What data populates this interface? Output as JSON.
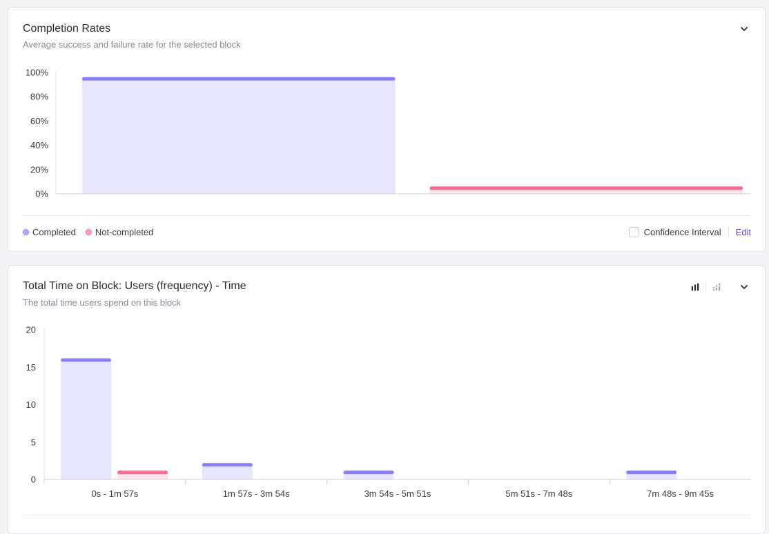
{
  "completion": {
    "title": "Completion Rates",
    "subtitle": "Average success and failure rate for the selected block",
    "legend": {
      "completed": "Completed",
      "not_completed": "Not-completed"
    },
    "confidence_label": "Confidence Interval",
    "edit_label": "Edit"
  },
  "time_on_block": {
    "title": "Total Time on Block: Users (frequency) - Time",
    "subtitle": "The total time users spend on this block"
  },
  "colors": {
    "completed_fill": "#e8e6fd",
    "completed_stroke": "#8b7ff5",
    "not_completed_fill": "#fde3ea",
    "not_completed_stroke": "#ee6f91",
    "accent": "#5b4bdb"
  },
  "icons": {
    "collapse": "chevron-down-icon",
    "bar_view": "bar-chart-icon",
    "distribution_view": "distribution-chart-icon"
  },
  "chart_data": [
    {
      "type": "bar",
      "categories": [
        "Completed",
        "Not-completed"
      ],
      "values": [
        95,
        5
      ],
      "ylim": [
        0,
        100
      ],
      "yticks": [
        "0%",
        "20%",
        "40%",
        "60%",
        "80%",
        "100%"
      ],
      "ytick_values": [
        0,
        20,
        40,
        60,
        80,
        100
      ],
      "legend": [
        "Completed",
        "Not-completed"
      ],
      "legend_position": "bottom-left",
      "grid": false
    },
    {
      "type": "bar",
      "categories": [
        "0s - 1m 57s",
        "1m 57s - 3m 54s",
        "3m 54s - 5m 51s",
        "5m 51s - 7m 48s",
        "7m 48s - 9m 45s"
      ],
      "series": [
        {
          "name": "Completed",
          "values": [
            16,
            2,
            1,
            0,
            1
          ]
        },
        {
          "name": "Not-completed",
          "values": [
            1,
            0,
            0,
            0,
            0
          ]
        }
      ],
      "ylim": [
        0,
        20
      ],
      "yticks": [
        "0",
        "5",
        "10",
        "15",
        "20"
      ],
      "ytick_values": [
        0,
        5,
        10,
        15,
        20
      ],
      "grid": false
    }
  ]
}
